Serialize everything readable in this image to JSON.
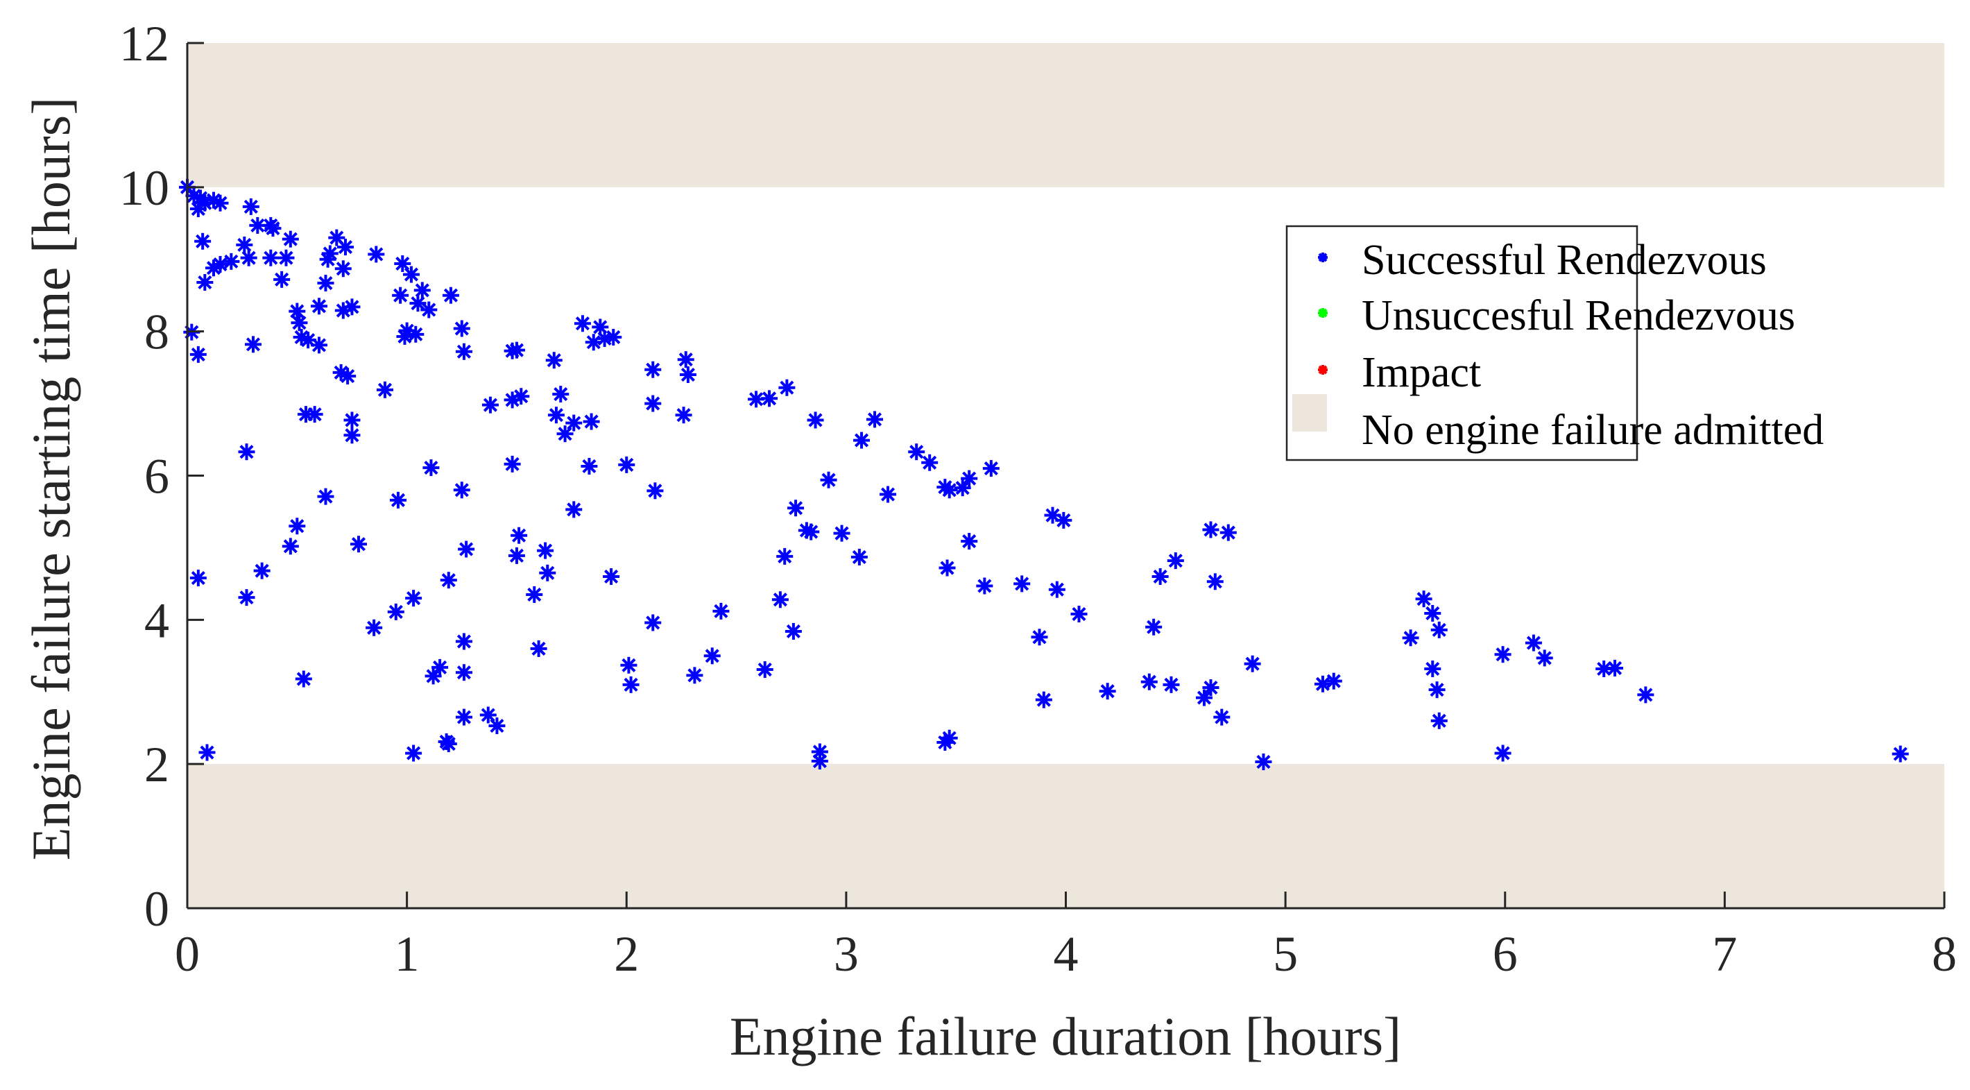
{
  "chart_data": {
    "type": "scatter",
    "title": "",
    "xlabel": "Engine failure duration [hours]",
    "ylabel": "Engine failure starting time [hours]",
    "xlim": [
      0,
      8
    ],
    "ylim": [
      0,
      12
    ],
    "xticks": [
      0,
      1,
      2,
      3,
      4,
      5,
      6,
      7,
      8
    ],
    "yticks": [
      0,
      2,
      4,
      6,
      8,
      10,
      12
    ],
    "grid": false,
    "legend_position": "upper right (inside)",
    "shaded_regions": [
      {
        "name": "No engine failure admitted",
        "y_from": 10,
        "y_to": 12,
        "color": "#ece6dd"
      },
      {
        "name": "No engine failure admitted",
        "y_from": 0,
        "y_to": 2,
        "color": "#ece6dd"
      }
    ],
    "series": [
      {
        "name": "Successful Rendezvous",
        "color": "#0000ff",
        "marker": "*",
        "points": [
          [
            0.0,
            10.0
          ],
          [
            0.03,
            9.88
          ],
          [
            0.06,
            9.85
          ],
          [
            0.08,
            9.78
          ],
          [
            0.05,
            9.7
          ],
          [
            0.12,
            9.82
          ],
          [
            0.15,
            9.78
          ],
          [
            0.07,
            9.25
          ],
          [
            0.08,
            8.68
          ],
          [
            0.12,
            8.88
          ],
          [
            0.15,
            8.93
          ],
          [
            0.2,
            8.97
          ],
          [
            0.26,
            9.2
          ],
          [
            0.29,
            9.73
          ],
          [
            0.32,
            9.47
          ],
          [
            0.38,
            9.47
          ],
          [
            0.39,
            9.43
          ],
          [
            0.28,
            9.02
          ],
          [
            0.38,
            9.02
          ],
          [
            0.43,
            8.72
          ],
          [
            0.47,
            9.28
          ],
          [
            0.45,
            9.02
          ],
          [
            0.5,
            8.28
          ],
          [
            0.51,
            8.12
          ],
          [
            0.55,
            7.88
          ],
          [
            0.6,
            8.35
          ],
          [
            0.63,
            8.67
          ],
          [
            0.64,
            9.0
          ],
          [
            0.68,
            9.3
          ],
          [
            0.54,
            6.85
          ],
          [
            0.58,
            6.85
          ],
          [
            0.6,
            7.81
          ],
          [
            0.63,
            5.71
          ],
          [
            0.65,
            9.08
          ],
          [
            0.71,
            8.87
          ],
          [
            0.72,
            9.17
          ],
          [
            0.7,
            7.43
          ],
          [
            0.73,
            7.38
          ],
          [
            0.75,
            6.56
          ],
          [
            0.75,
            6.77
          ],
          [
            0.75,
            8.34
          ],
          [
            0.71,
            8.29
          ],
          [
            0.78,
            5.05
          ],
          [
            0.86,
            9.07
          ],
          [
            0.9,
            7.19
          ],
          [
            0.96,
            5.66
          ],
          [
            0.97,
            8.5
          ],
          [
            0.98,
            8.94
          ],
          [
            1.0,
            8.01
          ],
          [
            1.02,
            8.79
          ],
          [
            1.05,
            8.39
          ],
          [
            1.07,
            8.57
          ],
          [
            1.1,
            8.3
          ],
          [
            0.99,
            7.93
          ],
          [
            1.04,
            7.96
          ],
          [
            1.11,
            6.11
          ],
          [
            1.25,
            8.04
          ],
          [
            1.2,
            8.5
          ],
          [
            1.26,
            7.72
          ],
          [
            1.25,
            5.8
          ],
          [
            1.27,
            4.98
          ],
          [
            1.38,
            6.98
          ],
          [
            1.48,
            7.05
          ],
          [
            1.48,
            6.16
          ],
          [
            1.48,
            7.73
          ],
          [
            1.5,
            7.74
          ],
          [
            1.52,
            7.1
          ],
          [
            1.51,
            5.17
          ],
          [
            1.5,
            4.89
          ],
          [
            1.58,
            4.35
          ],
          [
            1.6,
            3.6
          ],
          [
            1.63,
            4.96
          ],
          [
            1.67,
            7.6
          ],
          [
            1.68,
            6.84
          ],
          [
            1.7,
            7.13
          ],
          [
            1.72,
            6.58
          ],
          [
            1.76,
            6.73
          ],
          [
            1.76,
            5.53
          ],
          [
            1.8,
            8.11
          ],
          [
            1.83,
            6.13
          ],
          [
            1.84,
            6.75
          ],
          [
            1.85,
            7.85
          ],
          [
            1.88,
            8.06
          ],
          [
            1.9,
            7.9
          ],
          [
            1.94,
            7.92
          ],
          [
            1.93,
            4.6
          ],
          [
            2.0,
            6.15
          ],
          [
            2.01,
            3.37
          ],
          [
            2.02,
            3.1
          ],
          [
            2.12,
            7.47
          ],
          [
            2.12,
            7.0
          ],
          [
            2.13,
            5.79
          ],
          [
            2.12,
            3.96
          ],
          [
            2.26,
            6.84
          ],
          [
            2.27,
            7.61
          ],
          [
            2.28,
            7.4
          ],
          [
            2.31,
            3.23
          ],
          [
            2.39,
            3.5
          ],
          [
            2.43,
            4.12
          ],
          [
            2.59,
            7.06
          ],
          [
            2.65,
            7.07
          ],
          [
            2.63,
            3.31
          ],
          [
            2.7,
            4.28
          ],
          [
            2.72,
            4.88
          ],
          [
            2.73,
            7.22
          ],
          [
            2.76,
            3.84
          ],
          [
            2.77,
            5.55
          ],
          [
            2.82,
            5.24
          ],
          [
            2.84,
            5.22
          ],
          [
            2.86,
            6.77
          ],
          [
            2.88,
            2.17
          ],
          [
            2.88,
            2.04
          ],
          [
            2.92,
            5.94
          ],
          [
            2.98,
            5.2
          ],
          [
            3.06,
            4.87
          ],
          [
            3.07,
            6.49
          ],
          [
            3.13,
            6.78
          ],
          [
            3.19,
            5.74
          ],
          [
            3.32,
            6.33
          ],
          [
            3.38,
            6.18
          ],
          [
            3.45,
            5.84
          ],
          [
            3.47,
            5.8
          ],
          [
            3.53,
            5.83
          ],
          [
            3.56,
            5.96
          ],
          [
            3.56,
            5.09
          ],
          [
            3.63,
            4.47
          ],
          [
            3.66,
            6.1
          ],
          [
            3.45,
            2.3
          ],
          [
            3.47,
            2.36
          ],
          [
            3.46,
            4.72
          ],
          [
            3.8,
            4.5
          ],
          [
            3.88,
            3.76
          ],
          [
            3.9,
            2.89
          ],
          [
            3.94,
            5.45
          ],
          [
            3.96,
            4.42
          ],
          [
            3.99,
            5.38
          ],
          [
            4.06,
            4.08
          ],
          [
            4.19,
            3.01
          ],
          [
            4.38,
            3.14
          ],
          [
            4.4,
            3.9
          ],
          [
            4.43,
            4.6
          ],
          [
            4.48,
            3.1
          ],
          [
            4.5,
            4.82
          ],
          [
            4.63,
            2.92
          ],
          [
            4.66,
            5.25
          ],
          [
            4.66,
            3.06
          ],
          [
            4.68,
            4.53
          ],
          [
            4.71,
            2.65
          ],
          [
            4.74,
            5.21
          ],
          [
            4.85,
            3.39
          ],
          [
            4.9,
            2.03
          ],
          [
            5.17,
            3.11
          ],
          [
            5.22,
            3.15
          ],
          [
            5.57,
            3.75
          ],
          [
            5.63,
            4.29
          ],
          [
            5.67,
            4.09
          ],
          [
            5.67,
            3.32
          ],
          [
            5.69,
            3.03
          ],
          [
            5.7,
            3.86
          ],
          [
            5.7,
            2.6
          ],
          [
            5.99,
            3.52
          ],
          [
            5.99,
            2.15
          ],
          [
            6.13,
            3.68
          ],
          [
            6.18,
            3.47
          ],
          [
            6.45,
            3.32
          ],
          [
            6.5,
            3.33
          ],
          [
            6.64,
            2.96
          ],
          [
            7.8,
            2.14
          ],
          [
            0.02,
            7.99
          ],
          [
            0.05,
            7.68
          ],
          [
            0.05,
            4.58
          ],
          [
            0.09,
            2.16
          ],
          [
            0.27,
            4.31
          ],
          [
            0.27,
            6.33
          ],
          [
            0.3,
            7.82
          ],
          [
            0.34,
            4.68
          ],
          [
            0.47,
            5.02
          ],
          [
            0.5,
            5.3
          ],
          [
            0.53,
            3.18
          ],
          [
            0.52,
            7.92
          ],
          [
            0.95,
            4.11
          ],
          [
            0.85,
            3.89
          ],
          [
            1.03,
            4.3
          ],
          [
            1.03,
            2.15
          ],
          [
            1.12,
            3.22
          ],
          [
            1.15,
            3.34
          ],
          [
            1.18,
            2.31
          ],
          [
            1.19,
            2.28
          ],
          [
            1.19,
            4.55
          ],
          [
            1.26,
            3.7
          ],
          [
            1.26,
            3.27
          ],
          [
            1.26,
            2.65
          ],
          [
            1.37,
            2.68
          ],
          [
            1.41,
            2.53
          ],
          [
            1.64,
            4.65
          ]
        ]
      },
      {
        "name": "Unsuccesful Rendezvous",
        "color": "#00ff00",
        "marker": "*",
        "points": []
      },
      {
        "name": "Impact",
        "color": "#ff0000",
        "marker": "*",
        "points": []
      }
    ]
  },
  "axes": {
    "x_tick_labels": [
      "0",
      "1",
      "2",
      "3",
      "4",
      "5",
      "6",
      "7",
      "8"
    ],
    "y_tick_labels": [
      "0",
      "2",
      "4",
      "6",
      "8",
      "10",
      "12"
    ],
    "x_title": "Engine failure duration [hours]",
    "y_title": "Engine failure starting time [hours]"
  },
  "legend": {
    "items": [
      {
        "label": "Successful Rendezvous",
        "color": "#0000ff",
        "type": "marker"
      },
      {
        "label": "Unsuccesful Rendezvous",
        "color": "#00ff00",
        "type": "marker"
      },
      {
        "label": "Impact",
        "color": "#ff0000",
        "type": "marker"
      },
      {
        "label": "No engine failure admitted",
        "color": "#ece6dd",
        "type": "patch"
      }
    ]
  }
}
